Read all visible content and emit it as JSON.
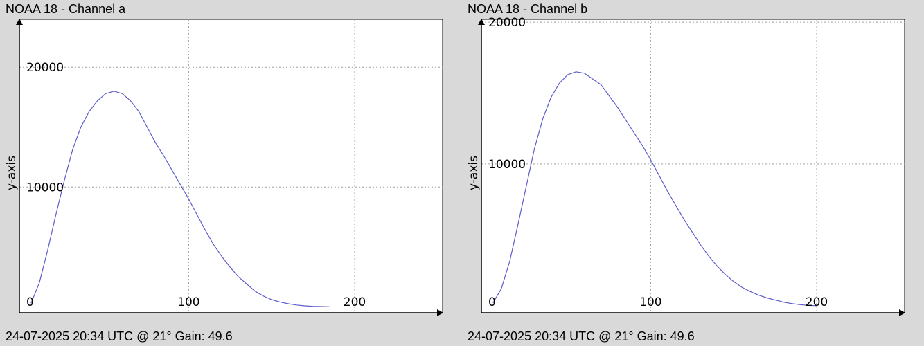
{
  "colors": {
    "background": "#d9d9d9",
    "plot_area": "#ffffff",
    "series": "#5c5ccd",
    "grid": "#a0a0a0"
  },
  "panels": [
    {
      "title": "NOAA 18 - Channel a",
      "footer": "24-07-2025 20:34 UTC @ 21° Gain: 49.6",
      "ylabel": "y-axis",
      "xlim": [
        -2,
        253
      ],
      "ylim": [
        -500,
        24000
      ],
      "xticks": [
        0,
        100,
        200
      ],
      "xtick_labels": [
        "0",
        "100",
        "200"
      ],
      "yticks": [
        10000,
        20000
      ],
      "ytick_labels": [
        "10000",
        "20000"
      ]
    },
    {
      "title": "NOAA 18 - Channel b",
      "footer": "24-07-2025 20:34 UTC @ 21° Gain: 49.6",
      "ylabel": "y-axis",
      "xlim": [
        -2,
        253
      ],
      "ylim": [
        -500,
        20200
      ],
      "xticks": [
        0,
        100,
        200
      ],
      "xtick_labels": [
        "0",
        "100",
        "200"
      ],
      "yticks": [
        10000,
        20000
      ],
      "ytick_labels": [
        "10000",
        "20000"
      ]
    }
  ],
  "chart_data": [
    {
      "type": "line",
      "title": "NOAA 18 - Channel a",
      "xlabel": "",
      "ylabel": "y-axis",
      "xlim": [
        -2,
        253
      ],
      "ylim": [
        -500,
        24000
      ],
      "grid": true,
      "x": [
        5,
        10,
        15,
        20,
        25,
        30,
        35,
        40,
        45,
        50,
        55,
        60,
        65,
        70,
        75,
        80,
        85,
        90,
        95,
        100,
        105,
        110,
        115,
        120,
        125,
        130,
        135,
        140,
        145,
        150,
        155,
        160,
        165,
        170,
        175,
        180,
        185
      ],
      "series": [
        {
          "values": [
            300,
            2000,
            4700,
            7700,
            10500,
            13100,
            15000,
            16300,
            17200,
            17800,
            18000,
            17800,
            17200,
            16300,
            15000,
            13700,
            12600,
            11400,
            10200,
            9000,
            7700,
            6400,
            5200,
            4200,
            3300,
            2500,
            1900,
            1300,
            900,
            600,
            400,
            250,
            150,
            80,
            40,
            20,
            0
          ]
        }
      ]
    },
    {
      "type": "line",
      "title": "NOAA 18 - Channel b",
      "xlabel": "",
      "ylabel": "y-axis",
      "xlim": [
        -2,
        253
      ],
      "ylim": [
        -500,
        20200
      ],
      "grid": true,
      "x": [
        5,
        10,
        15,
        20,
        25,
        30,
        35,
        40,
        45,
        50,
        55,
        60,
        65,
        70,
        75,
        80,
        85,
        90,
        95,
        100,
        105,
        110,
        115,
        120,
        125,
        130,
        135,
        140,
        145,
        150,
        155,
        160,
        165,
        170,
        175,
        180,
        185,
        190,
        195,
        200
      ],
      "series": [
        {
          "values": [
            200,
            1200,
            3100,
            5700,
            8400,
            11100,
            13200,
            14700,
            15700,
            16300,
            16500,
            16400,
            16000,
            15600,
            14800,
            14000,
            13100,
            12200,
            11300,
            10300,
            9200,
            8100,
            7100,
            6100,
            5200,
            4300,
            3500,
            2800,
            2200,
            1700,
            1300,
            1000,
            750,
            550,
            400,
            250,
            150,
            70,
            20,
            0
          ]
        }
      ]
    }
  ]
}
